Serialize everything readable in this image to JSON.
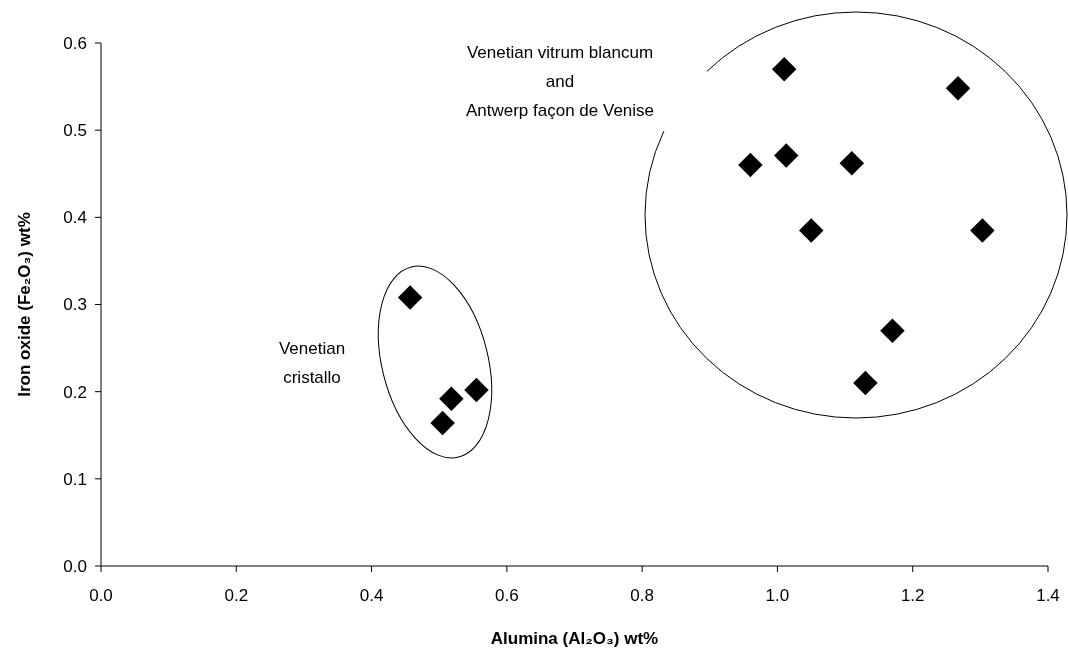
{
  "chart_data": {
    "type": "scatter",
    "xlabel": "Alumina (Al₂O₃) wt%",
    "ylabel": "Iron oxide (Fe₂O₃) wt%",
    "series": [
      {
        "color": "#000000",
        "x": [
          0.457,
          0.518,
          0.505,
          0.555,
          0.96,
          1.01,
          1.013,
          1.05,
          1.11,
          1.13,
          1.17,
          1.267,
          1.303
        ],
        "values": [
          0.308,
          0.192,
          0.164,
          0.202,
          0.46,
          0.57,
          0.471,
          0.385,
          0.462,
          0.21,
          0.27,
          0.548,
          0.385
        ]
      }
    ],
    "marker": "diamond",
    "xlim": [
      0,
      1.4
    ],
    "xticks": [
      {
        "value": 0,
        "label": "0.0"
      },
      0.2,
      0.4,
      0.6,
      0.8,
      {
        "value": 1,
        "label": "1.0"
      },
      1.2,
      1.4
    ],
    "ylim": [
      0,
      0.6
    ],
    "yticks": [
      {
        "value": 0,
        "label": "0.0"
      },
      0.1,
      0.2,
      0.3,
      0.4,
      0.5,
      0.6
    ],
    "annotations": [
      "Venetian vitrum blancum",
      "and",
      "Antwerp façon de Venise",
      "Venetian",
      "cristallo"
    ],
    "grid": false
  }
}
